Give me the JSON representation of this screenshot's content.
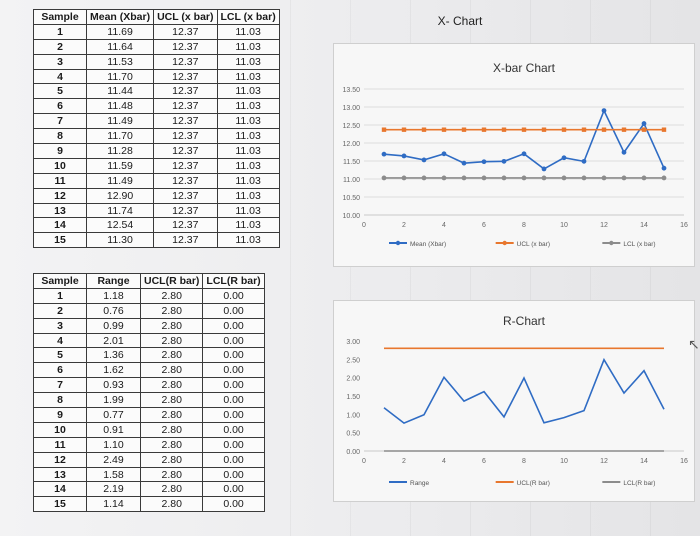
{
  "page_title": "X- Chart",
  "x_table": {
    "headers": [
      "Sample",
      "Mean (Xbar)",
      "UCL (x bar)",
      "LCL (x bar)"
    ],
    "rows": [
      [
        "1",
        "11.69",
        "12.37",
        "11.03"
      ],
      [
        "2",
        "11.64",
        "12.37",
        "11.03"
      ],
      [
        "3",
        "11.53",
        "12.37",
        "11.03"
      ],
      [
        "4",
        "11.70",
        "12.37",
        "11.03"
      ],
      [
        "5",
        "11.44",
        "12.37",
        "11.03"
      ],
      [
        "6",
        "11.48",
        "12.37",
        "11.03"
      ],
      [
        "7",
        "11.49",
        "12.37",
        "11.03"
      ],
      [
        "8",
        "11.70",
        "12.37",
        "11.03"
      ],
      [
        "9",
        "11.28",
        "12.37",
        "11.03"
      ],
      [
        "10",
        "11.59",
        "12.37",
        "11.03"
      ],
      [
        "11",
        "11.49",
        "12.37",
        "11.03"
      ],
      [
        "12",
        "12.90",
        "12.37",
        "11.03"
      ],
      [
        "13",
        "11.74",
        "12.37",
        "11.03"
      ],
      [
        "14",
        "12.54",
        "12.37",
        "11.03"
      ],
      [
        "15",
        "11.30",
        "12.37",
        "11.03"
      ]
    ]
  },
  "r_table": {
    "headers": [
      "Sample",
      "Range",
      "UCL(R bar)",
      "LCL(R bar)"
    ],
    "rows": [
      [
        "1",
        "1.18",
        "2.80",
        "0.00"
      ],
      [
        "2",
        "0.76",
        "2.80",
        "0.00"
      ],
      [
        "3",
        "0.99",
        "2.80",
        "0.00"
      ],
      [
        "4",
        "2.01",
        "2.80",
        "0.00"
      ],
      [
        "5",
        "1.36",
        "2.80",
        "0.00"
      ],
      [
        "6",
        "1.62",
        "2.80",
        "0.00"
      ],
      [
        "7",
        "0.93",
        "2.80",
        "0.00"
      ],
      [
        "8",
        "1.99",
        "2.80",
        "0.00"
      ],
      [
        "9",
        "0.77",
        "2.80",
        "0.00"
      ],
      [
        "10",
        "0.91",
        "2.80",
        "0.00"
      ],
      [
        "11",
        "1.10",
        "2.80",
        "0.00"
      ],
      [
        "12",
        "2.49",
        "2.80",
        "0.00"
      ],
      [
        "13",
        "1.58",
        "2.80",
        "0.00"
      ],
      [
        "14",
        "2.19",
        "2.80",
        "0.00"
      ],
      [
        "15",
        "1.14",
        "2.80",
        "0.00"
      ]
    ]
  },
  "chart_data": [
    {
      "type": "line",
      "title": "X-bar Chart",
      "x": [
        1,
        2,
        3,
        4,
        5,
        6,
        7,
        8,
        9,
        10,
        11,
        12,
        13,
        14,
        15
      ],
      "xlim": [
        0,
        16
      ],
      "xticks": [
        "0",
        "2",
        "4",
        "6",
        "8",
        "10",
        "12",
        "14",
        "16"
      ],
      "ylim": [
        10.0,
        13.5
      ],
      "yticks": [
        "10.00",
        "10.50",
        "11.00",
        "11.50",
        "12.00",
        "12.50",
        "13.00",
        "13.50"
      ],
      "grid": true,
      "legend_position": "bottom",
      "series": [
        {
          "name": "Mean (Xbar)",
          "color": "#2f6cc4",
          "values": [
            11.69,
            11.64,
            11.53,
            11.7,
            11.44,
            11.48,
            11.49,
            11.7,
            11.28,
            11.59,
            11.49,
            12.9,
            11.74,
            12.54,
            11.3
          ]
        },
        {
          "name": "UCL (x bar)",
          "color": "#e8772e",
          "values": [
            12.37,
            12.37,
            12.37,
            12.37,
            12.37,
            12.37,
            12.37,
            12.37,
            12.37,
            12.37,
            12.37,
            12.37,
            12.37,
            12.37,
            12.37
          ]
        },
        {
          "name": "LCL (x bar)",
          "color": "#8c8c8c",
          "values": [
            11.03,
            11.03,
            11.03,
            11.03,
            11.03,
            11.03,
            11.03,
            11.03,
            11.03,
            11.03,
            11.03,
            11.03,
            11.03,
            11.03,
            11.03
          ]
        }
      ]
    },
    {
      "type": "line",
      "title": "R-Chart",
      "x": [
        1,
        2,
        3,
        4,
        5,
        6,
        7,
        8,
        9,
        10,
        11,
        12,
        13,
        14,
        15
      ],
      "xlim": [
        0,
        16
      ],
      "xticks": [
        "0",
        "2",
        "4",
        "6",
        "8",
        "10",
        "12",
        "14",
        "16"
      ],
      "ylim": [
        0.0,
        3.0
      ],
      "yticks": [
        "0.00",
        "0.50",
        "1.00",
        "1.50",
        "2.00",
        "2.50",
        "3.00"
      ],
      "grid": false,
      "legend_position": "bottom",
      "series": [
        {
          "name": "Range",
          "color": "#2f6cc4",
          "values": [
            1.18,
            0.76,
            0.99,
            2.01,
            1.36,
            1.62,
            0.93,
            1.99,
            0.77,
            0.91,
            1.1,
            2.49,
            1.58,
            2.19,
            1.14
          ]
        },
        {
          "name": "UCL(R bar)",
          "color": "#e8772e",
          "values": [
            2.8,
            2.8,
            2.8,
            2.8,
            2.8,
            2.8,
            2.8,
            2.8,
            2.8,
            2.8,
            2.8,
            2.8,
            2.8,
            2.8,
            2.8
          ]
        },
        {
          "name": "LCL(R bar)",
          "color": "#8c8c8c",
          "values": [
            0.0,
            0.0,
            0.0,
            0.0,
            0.0,
            0.0,
            0.0,
            0.0,
            0.0,
            0.0,
            0.0,
            0.0,
            0.0,
            0.0,
            0.0
          ]
        }
      ]
    }
  ]
}
